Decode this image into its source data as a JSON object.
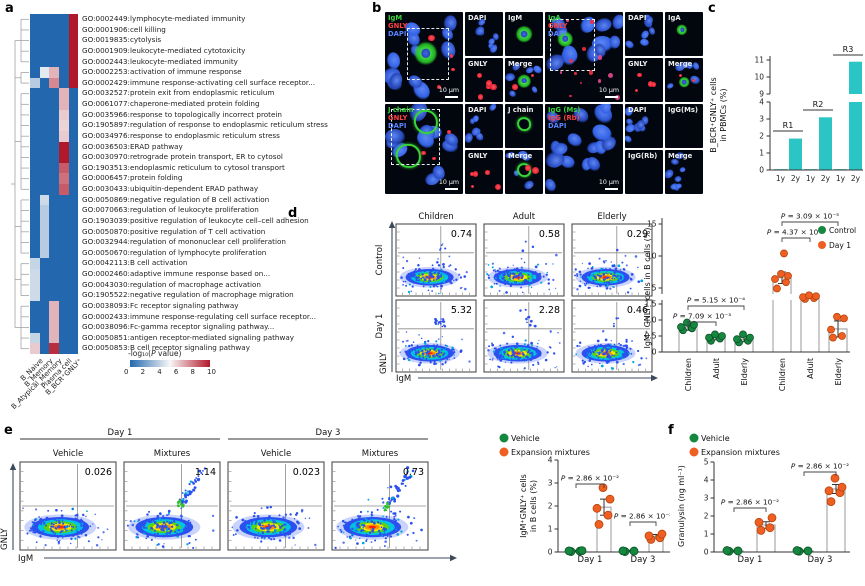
{
  "panels": {
    "a": {
      "letter": "a"
    },
    "b": {
      "letter": "b",
      "scale_bar": "10 μm",
      "groups": [
        {
          "overlay": [
            {
              "text": "IgM",
              "color": "#3ad43a"
            },
            {
              "text": "GNLY",
              "color": "#ff4040"
            },
            {
              "text": "DAPI",
              "color": "#5b84ff"
            }
          ],
          "tiles": [
            "DAPI",
            "IgM",
            "GNLY",
            "Merge"
          ]
        },
        {
          "overlay": [
            {
              "text": "IgA",
              "color": "#3ad43a"
            },
            {
              "text": "GNLY",
              "color": "#ff4040"
            },
            {
              "text": "DAPI",
              "color": "#5b84ff"
            }
          ],
          "tiles": [
            "DAPI",
            "IgA",
            "GNLY",
            "Merge"
          ]
        },
        {
          "overlay": [
            {
              "text": "J chain",
              "color": "#3ad43a"
            },
            {
              "text": "GNLY",
              "color": "#ff4040"
            },
            {
              "text": "DAPI",
              "color": "#5b84ff"
            }
          ],
          "tiles": [
            "DAPI",
            "J chain",
            "GNLY",
            "Merge"
          ]
        },
        {
          "overlay": [
            {
              "text": "IgG (Ms)",
              "color": "#3ad43a"
            },
            {
              "text": "IgG (Rb)",
              "color": "#ff4040"
            },
            {
              "text": "DAPI",
              "color": "#5b84ff"
            }
          ],
          "tiles": [
            "DAPI",
            "IgG(Ms)",
            "IgG(Rb)",
            "Merge"
          ]
        }
      ]
    },
    "c": {
      "letter": "c"
    },
    "d": {
      "letter": "d"
    },
    "e": {
      "letter": "e"
    },
    "f": {
      "letter": "f"
    }
  },
  "chart_data": [
    {
      "id": "go_heatmap",
      "type": "heatmap",
      "panel": "a",
      "columns": [
        "B_Naive",
        "B_Memory",
        "B_Atypical_Memory",
        "Plasma cell",
        "B_BCR⁺GNLY⁺"
      ],
      "legend_title": "-log₁₀(P value)",
      "legend_ticks": [
        "0",
        "2",
        "4",
        "6",
        "8",
        "10"
      ],
      "vmin": 0,
      "vmax": 10,
      "color_scale": [
        "#2368ae",
        "#f7f7f7",
        "#b2182b"
      ],
      "rows": [
        {
          "label": "GO:0002449:lymphocyte-mediated immunity",
          "values": [
            0,
            0,
            0,
            0,
            10
          ]
        },
        {
          "label": "GO:0001906:cell killing",
          "values": [
            0,
            0,
            0,
            0,
            10
          ]
        },
        {
          "label": "GO:0019835:cytolysis",
          "values": [
            0,
            0,
            0,
            0,
            10
          ]
        },
        {
          "label": "GO:0001909:leukocyte-mediated cytotoxicity",
          "values": [
            0,
            0,
            0,
            0,
            10
          ]
        },
        {
          "label": "GO:0002443:leukocyte-mediated immunity",
          "values": [
            0,
            0,
            0,
            0,
            10
          ]
        },
        {
          "label": "GO:0002253:activation of immune response",
          "values": [
            0,
            4.5,
            6.5,
            0,
            10
          ]
        },
        {
          "label": "GO:0002429:immune response-activating cell surface receptor...",
          "values": [
            3.5,
            0,
            7.5,
            0,
            10
          ]
        },
        {
          "label": "GO:0032527:protein exit from endoplasmic reticulum",
          "values": [
            0,
            0,
            0,
            6.5,
            0
          ]
        },
        {
          "label": "GO:0061077:chaperone-mediated protein folding",
          "values": [
            0,
            0,
            0,
            6.5,
            0
          ]
        },
        {
          "label": "GO:0035966:response to topologically incorrect protein",
          "values": [
            0,
            0,
            0,
            6,
            0
          ]
        },
        {
          "label": "GO:1905897:regulation of response to endoplasmic reticulum stress",
          "values": [
            0,
            0,
            0,
            5.8,
            0
          ]
        },
        {
          "label": "GO:0034976:response to endoplasmic reticulum stress",
          "values": [
            0,
            0,
            0,
            6,
            0
          ]
        },
        {
          "label": "GO:0036503:ERAD pathway",
          "values": [
            0,
            0,
            0,
            10,
            0
          ]
        },
        {
          "label": "GO:0030970:retrograde protein transport, ER to cytosol",
          "values": [
            0,
            0,
            0,
            10,
            0
          ]
        },
        {
          "label": "GO:1903513:endoplasmic reticulum to cytosol transport",
          "values": [
            0,
            0,
            0,
            8.5,
            0
          ]
        },
        {
          "label": "GO:0006457:protein folding",
          "values": [
            0,
            0,
            0,
            8,
            0
          ]
        },
        {
          "label": "GO:0030433:ubiquitin-dependent ERAD pathway",
          "values": [
            0,
            0,
            0,
            8.5,
            0
          ]
        },
        {
          "label": "GO:0050869:negative regulation of B cell activation",
          "values": [
            0,
            4,
            0,
            0,
            0
          ]
        },
        {
          "label": "GO:0070663:regulation of leukocyte proliferation",
          "values": [
            0,
            3.5,
            0,
            0,
            0
          ]
        },
        {
          "label": "GO:1903039:positive regulation of leukocyte cell–cell adhesion",
          "values": [
            0,
            3.5,
            0,
            0,
            0
          ]
        },
        {
          "label": "GO:0050870:positive regulation of T cell activation",
          "values": [
            0,
            3.5,
            0,
            0,
            0
          ]
        },
        {
          "label": "GO:0032944:regulation of mononuclear cell proliferation",
          "values": [
            0,
            3.5,
            0,
            0,
            0
          ]
        },
        {
          "label": "GO:0050670:regulation of lymphocyte proliferation",
          "values": [
            0,
            3.5,
            0,
            0,
            0
          ]
        },
        {
          "label": "GO:0042113:B cell activation",
          "values": [
            3.8,
            0,
            0,
            0,
            0
          ]
        },
        {
          "label": "GO:0002460:adaptive immune response based on...",
          "values": [
            4,
            0,
            0,
            0,
            0
          ]
        },
        {
          "label": "GO:0043030:regulation of macrophage activation",
          "values": [
            4,
            0,
            0,
            0,
            0
          ]
        },
        {
          "label": "GO:1905522:negative regulation of macrophage migration",
          "values": [
            4,
            0,
            0,
            0,
            0
          ]
        },
        {
          "label": "GO:0038093:Fc receptor signaling pathway",
          "values": [
            0,
            0,
            6.5,
            0,
            0
          ]
        },
        {
          "label": "GO:0002433:immune response-regulating cell surface receptor...",
          "values": [
            0,
            0,
            6.5,
            0,
            0
          ]
        },
        {
          "label": "GO:0038096:Fc-gamma receptor signaling pathway...",
          "values": [
            0,
            0,
            6.5,
            0,
            0
          ]
        },
        {
          "label": "GO:0050851:antigen receptor-mediated signaling pathway",
          "values": [
            3.8,
            0,
            6.5,
            0,
            0
          ]
        },
        {
          "label": "GO:0050853:B cell receptor signaling pathway",
          "values": [
            6,
            0,
            9.5,
            0,
            0
          ]
        }
      ]
    },
    {
      "id": "pbmc_bars",
      "type": "bar",
      "panel": "c",
      "ylabel_lines": [
        "B_BCR⁺GNLY⁺ cells",
        "in PBMCs (%)"
      ],
      "categories": [
        "1y",
        "2y",
        "1y",
        "2y",
        "1y",
        "2y"
      ],
      "values": [
        0.05,
        1.85,
        0.05,
        3.1,
        0.05,
        10.9
      ],
      "group_labels": [
        "R1",
        "R2",
        "R3"
      ],
      "yticks_lower": [
        0,
        1,
        2,
        3,
        4
      ],
      "yticks_upper": [
        9,
        10,
        11
      ],
      "bar_color": "#2cc5c5"
    },
    {
      "id": "d_flow",
      "type": "flow-quadrant",
      "panel": "d",
      "xaxis": "IgM",
      "yaxis": "GNLY",
      "row_labels": [
        "Control",
        "Day 1"
      ],
      "col_labels": [
        "Children",
        "Adult",
        "Elderly"
      ],
      "upper_right_pct": [
        [
          0.74,
          0.58,
          0.29
        ],
        [
          5.32,
          2.28,
          0.46
        ]
      ]
    },
    {
      "id": "d_dots",
      "type": "dot-bar",
      "panel": "d",
      "ylabel": "IgM⁺ GNLY⁺ cells in B cells (%)",
      "yticks_lower": [
        "0",
        "0.5",
        "1.0",
        "1.5"
      ],
      "yticks_upper": [
        "5",
        "10",
        "15"
      ],
      "legend": [
        {
          "label": "Control",
          "color": "#15873f"
        },
        {
          "label": "Day 1",
          "color": "#f05f22"
        }
      ],
      "groups": [
        {
          "name": "Children",
          "series": "Control",
          "mean": 0.78,
          "err": 0.1,
          "points": [
            0.68,
            0.74,
            0.78,
            0.85,
            0.92
          ]
        },
        {
          "name": "Adult",
          "series": "Control",
          "mean": 0.45,
          "err": 0.07,
          "points": [
            0.35,
            0.42,
            0.45,
            0.5,
            0.55
          ]
        },
        {
          "name": "Elderly",
          "series": "Control",
          "mean": 0.4,
          "err": 0.08,
          "points": [
            0.3,
            0.35,
            0.4,
            0.45,
            0.55
          ]
        },
        {
          "name": "Children",
          "series": "Day 1",
          "mean": 6.6,
          "err": 0.9,
          "points": [
            4.9,
            5.9,
            6.4,
            6.9,
            7.2,
            10.4
          ]
        },
        {
          "name": "Adult",
          "series": "Day 1",
          "mean": 3.0,
          "err": 0.3,
          "points": [
            2.6,
            2.8,
            3.0,
            3.2,
            3.4
          ]
        },
        {
          "name": "Elderly",
          "series": "Day 1",
          "mean": 0.72,
          "err": 0.25,
          "points": [
            0.45,
            0.5,
            0.7,
            1.05,
            1.1
          ]
        }
      ],
      "pvalues": [
        {
          "label": "P = 7.09 × 10⁻³",
          "from": 0,
          "to": 1
        },
        {
          "label": "P = 5.15 × 10⁻⁴",
          "from": 0,
          "to": 2
        },
        {
          "label": "P = 4.37 × 10⁻⁴",
          "from": 3,
          "to": 4
        },
        {
          "label": "P = 3.09 × 10⁻⁵",
          "from": 3,
          "to": 5
        }
      ]
    },
    {
      "id": "e_flow",
      "type": "flow-quadrant",
      "panel": "e",
      "xaxis": "IgM",
      "yaxis": "GNLY",
      "day_labels": [
        "Day 1",
        "Day 3"
      ],
      "col_labels": [
        "Vehicle",
        "Mixtures",
        "Vehicle",
        "Mixtures"
      ],
      "upper_right_pct": [
        0.026,
        1.14,
        0.023,
        0.73
      ]
    },
    {
      "id": "e_dots",
      "type": "dot-bar",
      "panel": "e",
      "ylabel_lines": [
        "IgM⁺GNLY⁺ cells",
        "in B cells (%)"
      ],
      "yticks": [
        "0",
        "1",
        "2",
        "3",
        "4"
      ],
      "legend": [
        {
          "label": "Vehicle",
          "color": "#15873f"
        },
        {
          "label": "Expansion mixtures",
          "color": "#f05f22"
        }
      ],
      "groups": [
        {
          "name": "Day 1",
          "series": "Vehicle",
          "mean": 0.04,
          "err": 0.03,
          "points": [
            0.02,
            0.04,
            0.05,
            0.06
          ]
        },
        {
          "name": "Day 1",
          "series": "Expansion mixtures",
          "mean": 1.95,
          "err": 0.35,
          "points": [
            1.2,
            1.6,
            1.9,
            2.3,
            2.8
          ]
        },
        {
          "name": "Day 3",
          "series": "Vehicle",
          "mean": 0.04,
          "err": 0.03,
          "points": [
            0.02,
            0.04,
            0.05
          ]
        },
        {
          "name": "Day 3",
          "series": "Expansion mixtures",
          "mean": 0.68,
          "err": 0.08,
          "points": [
            0.55,
            0.62,
            0.7,
            0.78
          ]
        }
      ],
      "pvalues": [
        {
          "label": "P = 2.86 × 10⁻²",
          "from": 0,
          "to": 1
        },
        {
          "label": "P = 2.86 × 10⁻²",
          "from": 2,
          "to": 3
        }
      ]
    },
    {
      "id": "f_dots",
      "type": "dot-bar",
      "panel": "f",
      "ylabel": "Granulysin (ng ml⁻¹)",
      "yticks": [
        "0",
        "1",
        "2",
        "3",
        "4",
        "5"
      ],
      "legend": [
        {
          "label": "Vehicle",
          "color": "#15873f"
        },
        {
          "label": "Expansion mixtures",
          "color": "#f05f22"
        }
      ],
      "groups": [
        {
          "name": "Day 1",
          "series": "Vehicle",
          "mean": 0.06,
          "err": 0.04,
          "points": [
            0.04,
            0.06,
            0.08
          ]
        },
        {
          "name": "Day 1",
          "series": "Expansion mixtures",
          "mean": 1.5,
          "err": 0.18,
          "points": [
            1.2,
            1.35,
            1.65,
            1.9
          ]
        },
        {
          "name": "Day 3",
          "series": "Vehicle",
          "mean": 0.06,
          "err": 0.04,
          "points": [
            0.04,
            0.06,
            0.08
          ]
        },
        {
          "name": "Day 3",
          "series": "Expansion mixtures",
          "mean": 3.5,
          "err": 0.25,
          "points": [
            2.8,
            3.3,
            3.4,
            3.6,
            4.1
          ]
        }
      ],
      "pvalues": [
        {
          "label": "P = 2.86 × 10⁻²",
          "from": 0,
          "to": 1
        },
        {
          "label": "P = 2.86 × 10⁻²",
          "from": 2,
          "to": 3
        }
      ]
    }
  ]
}
